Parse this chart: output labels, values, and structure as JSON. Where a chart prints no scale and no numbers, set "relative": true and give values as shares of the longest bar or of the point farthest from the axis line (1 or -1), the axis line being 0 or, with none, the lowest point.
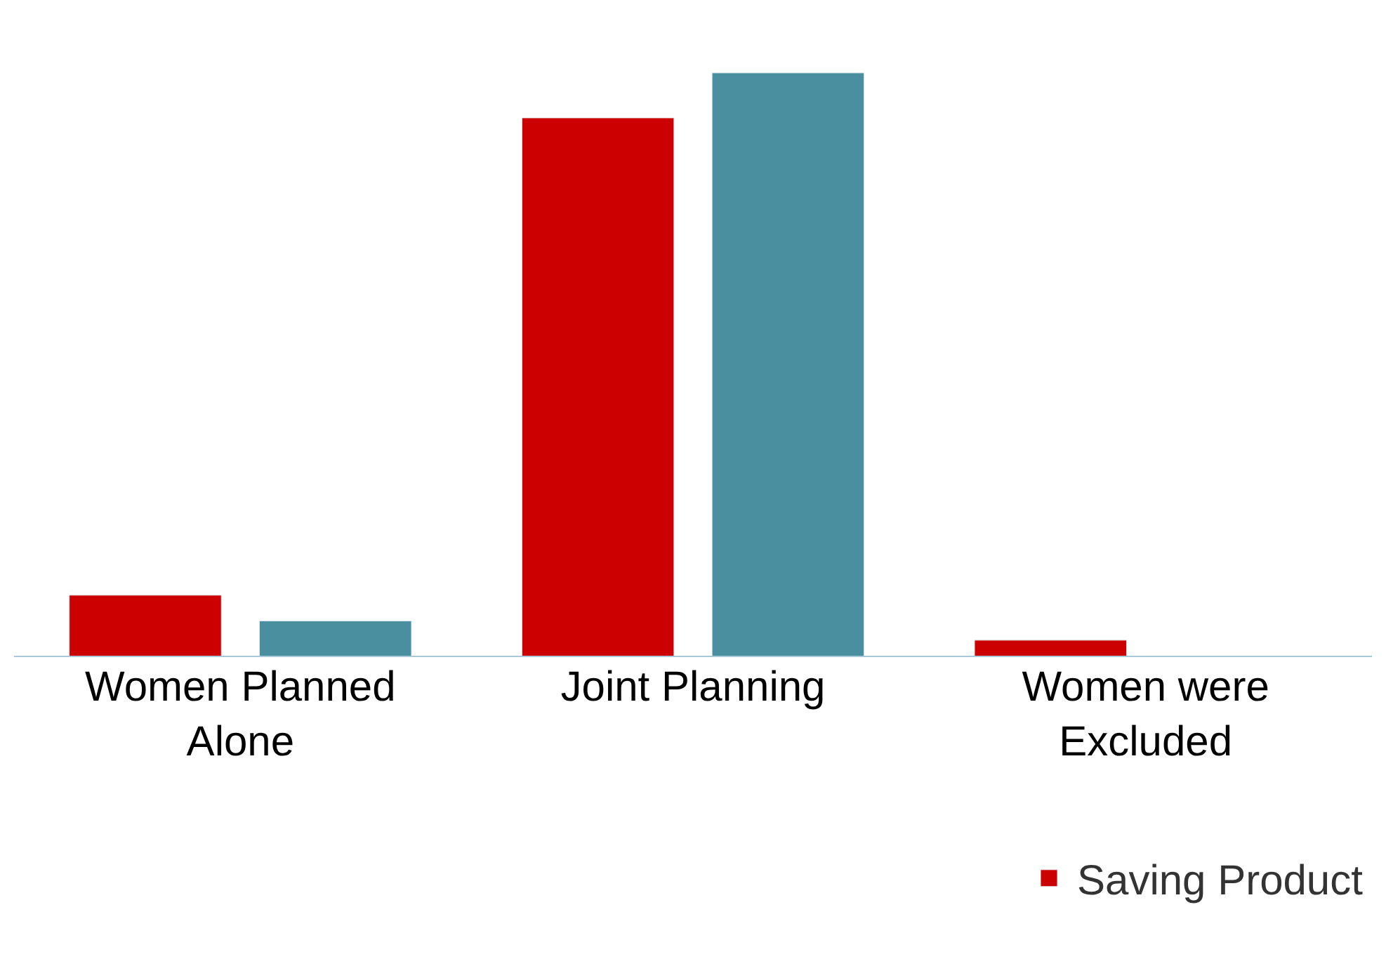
{
  "chart_data": {
    "type": "bar",
    "relative": true,
    "categories": [
      "Women Planned Alone",
      "Joint Planning",
      "Women were Excluded"
    ],
    "series": [
      {
        "name": "Saving Product",
        "color": "#cc0000",
        "values": [
          0.106,
          0.923,
          0.029
        ]
      },
      {
        "color": "#4a8fa0",
        "values": [
          0.062,
          1,
          null
        ]
      }
    ],
    "legend": "bottom right"
  }
}
